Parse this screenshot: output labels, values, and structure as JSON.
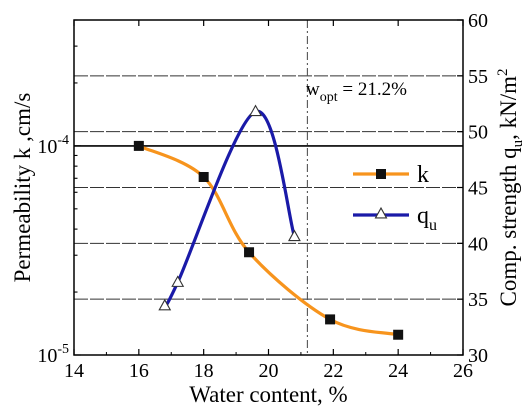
{
  "chart_data": {
    "type": "line",
    "x": {
      "label": "Water content, %",
      "lim": [
        14,
        26
      ],
      "ticks": [
        14,
        16,
        18,
        20,
        22,
        24,
        26
      ],
      "tick_labels": [
        "14",
        "16",
        "18",
        "20",
        "22",
        "24",
        "26"
      ]
    },
    "y_left": {
      "label": "Permeability k ,cm/s",
      "scale": "log",
      "lim": [
        1e-05,
        0.0004
      ],
      "tick_labels": [
        {
          "value": 1e-05,
          "base": "10",
          "exp": "-5"
        },
        {
          "value": 0.0001,
          "base": "10",
          "exp": "-4"
        }
      ]
    },
    "y_right": {
      "label_main": "Comp. strength q",
      "label_sub": "u",
      "label_unit": ", kN/m",
      "label_sup": "2",
      "lim": [
        30,
        60
      ],
      "ticks": [
        30,
        35,
        40,
        45,
        50,
        55,
        60
      ],
      "tick_labels": [
        "30",
        "35",
        "40",
        "45",
        "50",
        "55",
        "60"
      ]
    },
    "grid": "horizontal dashed at right-axis ticks",
    "series": [
      {
        "name": "k",
        "axis": "left",
        "color": "#f7941d",
        "marker": "filled-square",
        "points": [
          {
            "x": 16.0,
            "y": 0.0001
          },
          {
            "x": 18.0,
            "y": 7.1e-05
          },
          {
            "x": 19.4,
            "y": 3.1e-05
          },
          {
            "x": 21.9,
            "y": 1.48e-05
          },
          {
            "x": 24.0,
            "y": 1.25e-05
          }
        ]
      },
      {
        "name": "q",
        "name_sub": "u",
        "axis": "right",
        "color": "#1a1aa8",
        "marker": "open-triangle",
        "points": [
          {
            "x": 16.8,
            "y": 34.4
          },
          {
            "x": 17.2,
            "y": 36.5
          },
          {
            "x": 19.6,
            "y": 51.8
          },
          {
            "x": 20.8,
            "y": 40.6
          }
        ]
      }
    ],
    "annotation": {
      "text_main": "w",
      "text_sub": "opt",
      "text_rest": " = 21.2%",
      "line_x": 21.2
    },
    "legend_position": "right"
  }
}
